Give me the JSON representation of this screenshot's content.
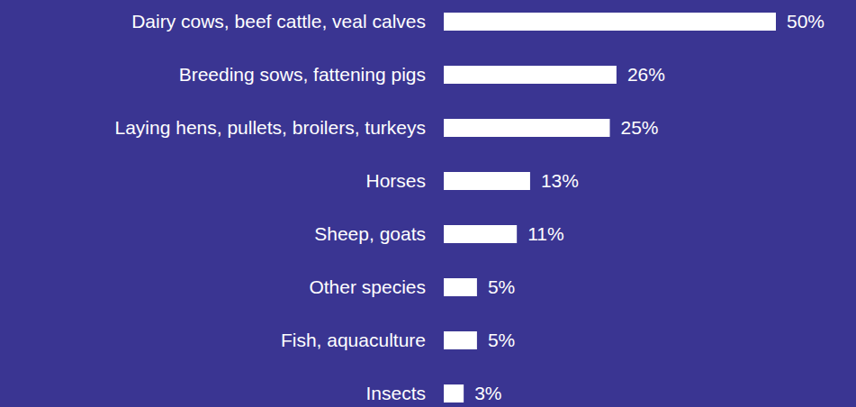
{
  "chart_data": {
    "type": "bar",
    "orientation": "horizontal",
    "categories": [
      "Dairy cows, beef cattle, veal calves",
      "Breeding sows, fattening pigs",
      "Laying hens, pullets, broilers, turkeys",
      "Horses",
      "Sheep, goats",
      "Other species",
      "Fish, aquaculture",
      "Insects"
    ],
    "values": [
      50,
      26,
      25,
      13,
      11,
      5,
      5,
      3
    ],
    "value_labels": [
      "50%",
      "26%",
      "25%",
      "13%",
      "11%",
      "5%",
      "5%",
      "3%"
    ],
    "data_labels": true,
    "color": "#ffffff",
    "xlim": [
      0,
      50
    ],
    "tick_labels": "y",
    "grid": false
  }
}
